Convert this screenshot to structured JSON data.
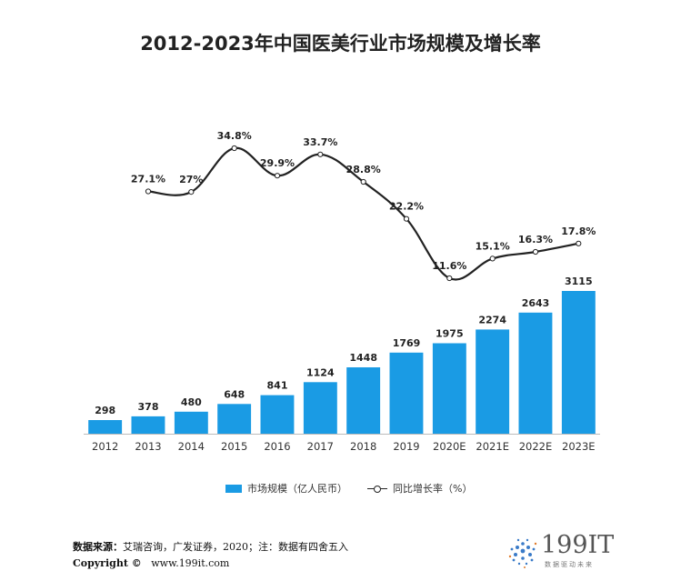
{
  "title": "2012-2023年中国医美行业市场规模及增长率",
  "chart_data": {
    "type": "bar+line",
    "categories": [
      "2012",
      "2013",
      "2014",
      "2015",
      "2016",
      "2017",
      "2018",
      "2019",
      "2020E",
      "2021E",
      "2022E",
      "2023E"
    ],
    "series": [
      {
        "name": "市场规模（亿人民币）",
        "type": "bar",
        "color": "#1a9be4",
        "values": [
          298,
          378,
          480,
          648,
          841,
          1124,
          1448,
          1769,
          1975,
          2274,
          2643,
          3115
        ]
      },
      {
        "name": "同比增长率（%）",
        "type": "line",
        "color": "#222222",
        "values": [
          null,
          27.1,
          27.0,
          34.8,
          29.9,
          33.7,
          28.8,
          22.2,
          11.6,
          15.1,
          16.3,
          17.8
        ],
        "labels": [
          "",
          "27.1%",
          "27%",
          "34.8%",
          "29.9%",
          "33.7%",
          "28.8%",
          "22.2%",
          "11.6%",
          "15.1%",
          "16.3%",
          "17.8%"
        ]
      }
    ],
    "bar_axis_range": [
      0,
      3115
    ],
    "line_axis_range": [
      11.6,
      34.8
    ],
    "legend_position": "bottom"
  },
  "legend": {
    "bar_label": "市场规模（亿人民币）",
    "line_label": "同比增长率（%）"
  },
  "footer": {
    "source_label": "数据来源：",
    "source_text": "艾瑞咨询，广发证券，2020；注：数据有四舍五入",
    "copyright_label": "Copyright ©",
    "website": "www.199it.com"
  },
  "logo": {
    "brand": "199IT",
    "slogan": "数据驱动未来"
  }
}
